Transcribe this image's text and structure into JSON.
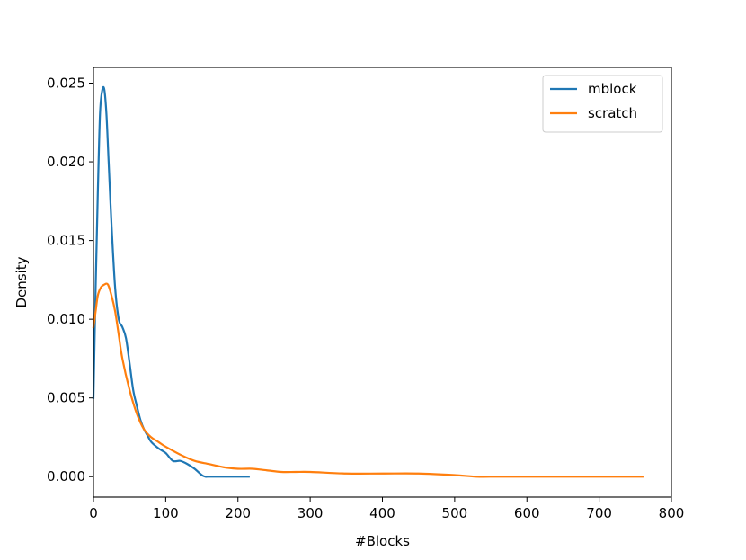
{
  "chart_data": {
    "type": "line",
    "title": "",
    "xlabel": "#Blocks",
    "ylabel": "Density",
    "xlim": [
      0,
      800
    ],
    "ylim": [
      -0.0013,
      0.026
    ],
    "xticks": [
      0,
      100,
      200,
      300,
      400,
      500,
      600,
      700,
      800
    ],
    "xtick_labels": [
      "0",
      "100",
      "200",
      "300",
      "400",
      "500",
      "600",
      "700",
      "800"
    ],
    "yticks": [
      0.0,
      0.005,
      0.01,
      0.015,
      0.02,
      0.025
    ],
    "ytick_labels": [
      "0.000",
      "0.005",
      "0.010",
      "0.015",
      "0.020",
      "0.025"
    ],
    "grid": false,
    "legend_position": "top-right",
    "series": [
      {
        "name": "mblock",
        "color": "#1f77b4",
        "x": [
          0,
          3,
          6,
          9,
          12,
          15,
          18,
          21,
          25,
          30,
          35,
          40,
          45,
          50,
          55,
          60,
          65,
          70,
          75,
          80,
          90,
          100,
          110,
          120,
          130,
          140,
          150,
          155,
          160,
          170,
          180,
          190,
          200,
          215
        ],
        "y": [
          0.005,
          0.012,
          0.018,
          0.023,
          0.0245,
          0.0246,
          0.023,
          0.02,
          0.016,
          0.012,
          0.01,
          0.0095,
          0.0088,
          0.0072,
          0.0055,
          0.0045,
          0.0036,
          0.003,
          0.0026,
          0.0022,
          0.0018,
          0.0015,
          0.001,
          0.001,
          0.0008,
          0.0005,
          0.0001,
          0.0,
          0.0,
          0.0,
          0.0,
          0.0,
          0.0,
          0.0
        ]
      },
      {
        "name": "scratch",
        "color": "#ff7f0e",
        "x": [
          0,
          3,
          6,
          10,
          15,
          20,
          25,
          30,
          35,
          40,
          50,
          60,
          70,
          80,
          90,
          100,
          120,
          140,
          160,
          180,
          200,
          220,
          240,
          260,
          280,
          300,
          350,
          400,
          450,
          500,
          530,
          560,
          600,
          650,
          700,
          760
        ],
        "y": [
          0.0095,
          0.0105,
          0.0115,
          0.012,
          0.0122,
          0.0122,
          0.0115,
          0.0105,
          0.009,
          0.0075,
          0.0055,
          0.004,
          0.003,
          0.0025,
          0.0022,
          0.0019,
          0.0014,
          0.001,
          0.0008,
          0.0006,
          0.0005,
          0.0005,
          0.0004,
          0.0003,
          0.0003,
          0.0003,
          0.0002,
          0.0002,
          0.0002,
          0.0001,
          0.0,
          0.0,
          0.0,
          0.0,
          0.0,
          0.0
        ]
      }
    ]
  }
}
